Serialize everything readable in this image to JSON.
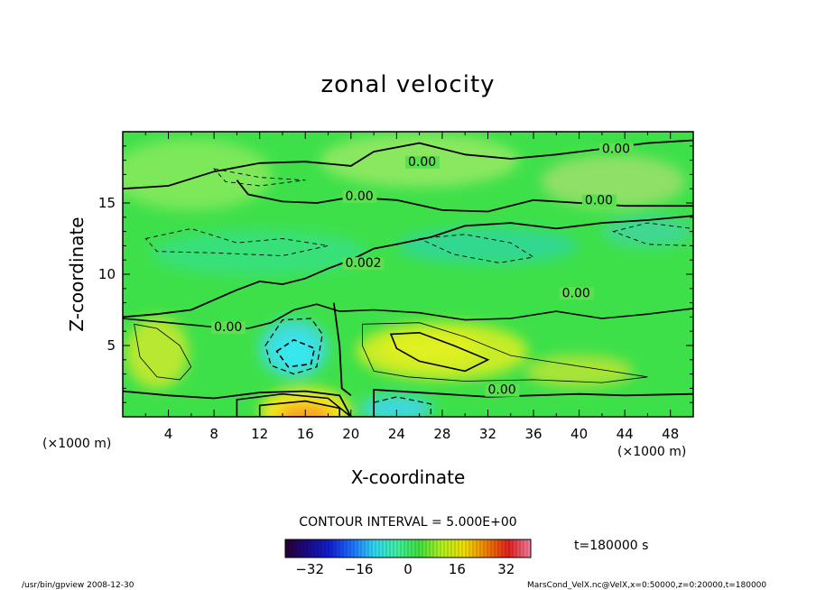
{
  "chart_data": {
    "type": "heatmap",
    "title": "zonal velocity",
    "xlabel": "X-coordinate",
    "ylabel": "Z-coordinate",
    "x_unit": "(×1000 m)",
    "y_unit": "(×1000 m)",
    "xlim": [
      0,
      50
    ],
    "ylim": [
      0,
      20
    ],
    "x_ticks": [
      4,
      8,
      12,
      16,
      20,
      24,
      28,
      32,
      36,
      40,
      44,
      48
    ],
    "y_ticks": [
      5,
      10,
      15
    ],
    "contour_interval_label": "CONTOUR INTERVAL = 5.000E+00",
    "time_label": "t=180000 s",
    "contour_labels": [
      {
        "text": "0.00",
        "x": 25,
        "y": 17.6
      },
      {
        "text": "0.00",
        "x": 42,
        "y": 18.5
      },
      {
        "text": "0.00",
        "x": 19.5,
        "y": 15.2
      },
      {
        "text": "0.00",
        "x": 40.5,
        "y": 14.9
      },
      {
        "text": "0.002",
        "x": 19.5,
        "y": 10.5
      },
      {
        "text": "0.00",
        "x": 38.5,
        "y": 8.4
      },
      {
        "text": "0.00",
        "x": 8,
        "y": 6.0
      },
      {
        "text": "0.00",
        "x": 32,
        "y": 1.6
      }
    ],
    "colorbar": {
      "ticks": [
        -32,
        -16,
        0,
        16,
        32
      ],
      "range": [
        -40,
        40
      ],
      "colors": [
        "#2a0030",
        "#1a0a8a",
        "#1020d0",
        "#1e70ff",
        "#30d8f0",
        "#40f0a0",
        "#40e040",
        "#b0f020",
        "#f0e000",
        "#f08000",
        "#e02020",
        "#f080a0"
      ]
    },
    "field_features": [
      {
        "kind": "positive",
        "x": 16,
        "y": 0.2,
        "peak": 22
      },
      {
        "kind": "positive",
        "x": 28,
        "y": 4.8,
        "peak": 11
      },
      {
        "kind": "positive",
        "x": 3,
        "y": 4.5,
        "peak": 6
      },
      {
        "kind": "negative",
        "x": 15,
        "y": 4.7,
        "peak": -11
      },
      {
        "kind": "negative",
        "x": 24,
        "y": 0.5,
        "peak": -8
      }
    ]
  },
  "footer": {
    "left": "/usr/bin/gpview   2008-12-30",
    "right": "MarsCond_VelX.nc@VelX,x=0:50000,z=0:20000,t=180000"
  }
}
